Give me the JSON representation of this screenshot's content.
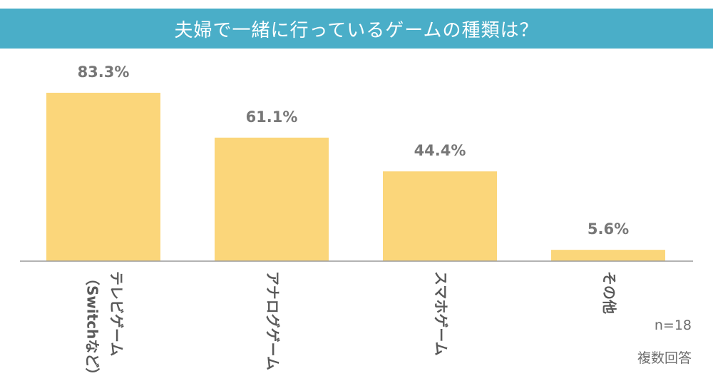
{
  "header": {
    "title": "夫婦で一緒に行っているゲームの種類は？"
  },
  "notes": {
    "sample": "n=18",
    "multi": "複数回答"
  },
  "colors": {
    "title_bg": "#4aaec8",
    "bar": "#fbd67a",
    "axis": "#9a9a9a"
  },
  "chart_data": {
    "type": "bar",
    "title": "夫婦で一緒に行っているゲームの種類は？",
    "categories": [
      "テレビゲーム（Switchなど）",
      "アナログゲーム",
      "スマホゲーム",
      "その他"
    ],
    "category_lines": [
      [
        "テレビゲーム",
        "（Switchなど）"
      ],
      [
        "アナログゲーム"
      ],
      [
        "スマホゲーム"
      ],
      [
        "その他"
      ]
    ],
    "values": [
      83.3,
      61.1,
      44.4,
      5.6
    ],
    "value_labels": [
      "83.3%",
      "61.1%",
      "44.4%",
      "5.6%"
    ],
    "unit": "%",
    "ylim": [
      0,
      83.3
    ],
    "grid": false,
    "legend": "none"
  }
}
